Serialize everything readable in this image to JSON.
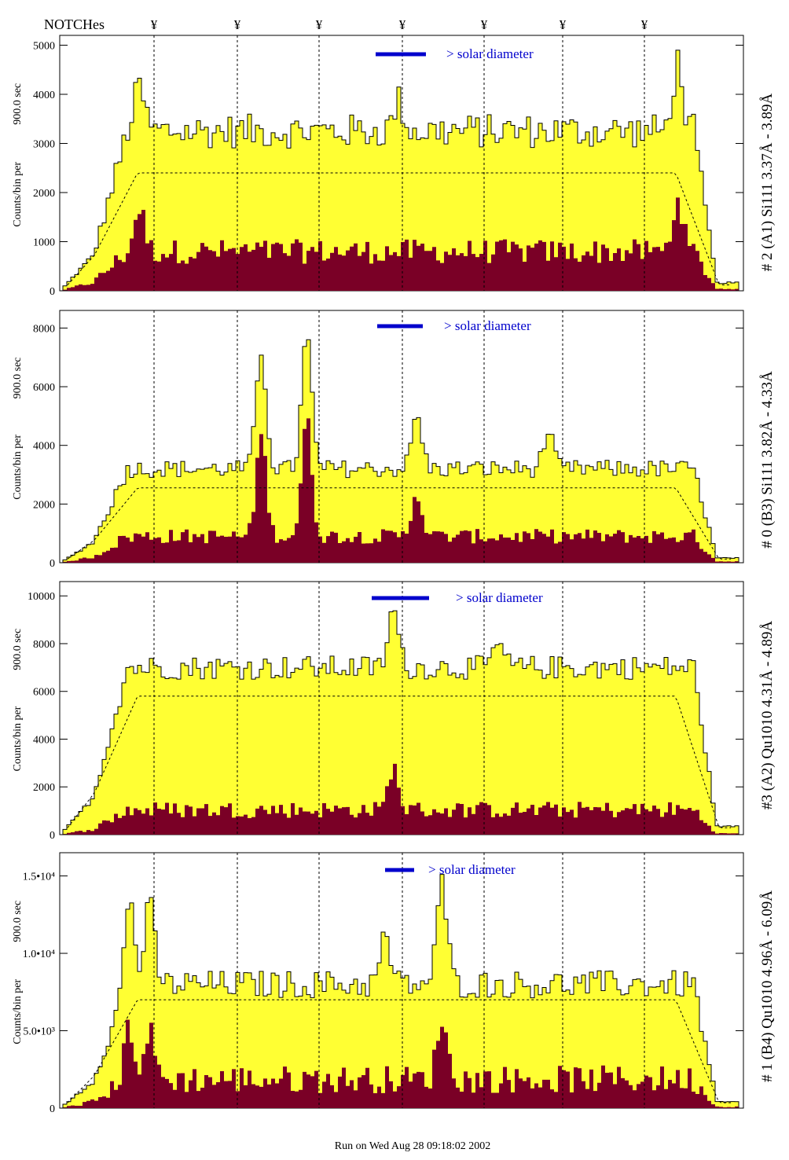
{
  "header": {
    "notches_label": "NOTCHes",
    "notch_symbol": "¥",
    "notch_positions": [
      196,
      302,
      406,
      512,
      616,
      716,
      820
    ]
  },
  "footer": {
    "run_label": "Run on Wed Aug 28 09:18:02 2002"
  },
  "colors": {
    "counts_fill": "#ffff33",
    "sub_fill": "#7a0026",
    "outline": "#000000",
    "legend_bar": "#0000cc",
    "legend_text": "#0000cc",
    "smooth_line": "#000000"
  },
  "chart_data": [
    {
      "type": "area",
      "title": "# 2 (A1) Si111  3.37Å - 3.89Å",
      "ylabel_main": "Counts/bin per",
      "ylabel_exposure": "900.0 sec",
      "legend_text": "> solar diameter",
      "ylim": [
        0,
        5200
      ],
      "yticks": [
        0,
        1000,
        2000,
        3000,
        4000,
        5000
      ],
      "ytick_labels": [
        "0",
        "1000",
        "2000",
        "3000",
        "4000",
        "5000"
      ],
      "plateau": 3250,
      "plateau_noise": 350,
      "smooth_level": 2400,
      "sub_base": 700,
      "sub_noise": 250,
      "peaks": [
        {
          "x": 175,
          "height": 900
        },
        {
          "x": 505,
          "height": 600
        },
        {
          "x": 860,
          "height": 1400
        }
      ],
      "sub_peaks": [
        {
          "x": 175,
          "height": 900
        },
        {
          "x": 860,
          "height": 1100
        }
      ]
    },
    {
      "type": "area",
      "title": "# 0 (B3) Si111  3.82Å - 4.33Å",
      "ylabel_main": "Counts/bin per",
      "ylabel_exposure": "900.0 sec",
      "legend_text": "> solar diameter",
      "ylim": [
        0,
        8600
      ],
      "yticks": [
        0,
        2000,
        4000,
        6000,
        8000
      ],
      "ytick_labels": [
        "0",
        "2000",
        "4000",
        "6000",
        "8000"
      ],
      "plateau": 3200,
      "plateau_noise": 300,
      "smooth_level": 2550,
      "sub_base": 800,
      "sub_noise": 250,
      "peaks": [
        {
          "x": 330,
          "height": 4000
        },
        {
          "x": 388,
          "height": 4500
        },
        {
          "x": 528,
          "height": 1800
        },
        {
          "x": 695,
          "height": 1200
        }
      ],
      "sub_peaks": [
        {
          "x": 330,
          "height": 3500
        },
        {
          "x": 388,
          "height": 4000
        },
        {
          "x": 528,
          "height": 1500
        }
      ]
    },
    {
      "type": "area",
      "title": "#3 (A2) Qu1010  4.31Å - 4.89Å",
      "ylabel_main": "Counts/bin per",
      "ylabel_exposure": "900.0 sec",
      "legend_text": "> solar diameter",
      "ylim": [
        0,
        10600
      ],
      "yticks": [
        0,
        2000,
        4000,
        6000,
        8000,
        10000
      ],
      "ytick_labels": [
        "0",
        "2000",
        "4000",
        "6000",
        "8000",
        "10000"
      ],
      "plateau": 7000,
      "plateau_noise": 500,
      "smooth_level": 5800,
      "sub_base": 900,
      "sub_noise": 350,
      "peaks": [
        {
          "x": 498,
          "height": 2400
        },
        {
          "x": 632,
          "height": 1000
        }
      ],
      "sub_peaks": [
        {
          "x": 498,
          "height": 1800
        }
      ]
    },
    {
      "type": "area",
      "title": "# 1 (B4) Qu1010 4.96Å - 6.09Å",
      "ylabel_main": "Counts/bin per",
      "ylabel_exposure": "900.0 sec",
      "legend_text": "> solar diameter",
      "ylim": [
        0,
        16500
      ],
      "yticks": [
        0,
        5000,
        10000,
        15000
      ],
      "ytick_labels": [
        "0",
        "5.0•10³",
        "1.0•10⁴",
        "1.5•10⁴"
      ],
      "plateau": 8000,
      "plateau_noise": 900,
      "smooth_level": 7000,
      "sub_base": 1500,
      "sub_noise": 900,
      "peaks": [
        {
          "x": 162,
          "height": 5500
        },
        {
          "x": 188,
          "height": 5000
        },
        {
          "x": 560,
          "height": 6500
        },
        {
          "x": 488,
          "height": 3000
        }
      ],
      "sub_peaks": [
        {
          "x": 162,
          "height": 3500
        },
        {
          "x": 188,
          "height": 3000
        },
        {
          "x": 560,
          "height": 4000
        }
      ]
    }
  ]
}
